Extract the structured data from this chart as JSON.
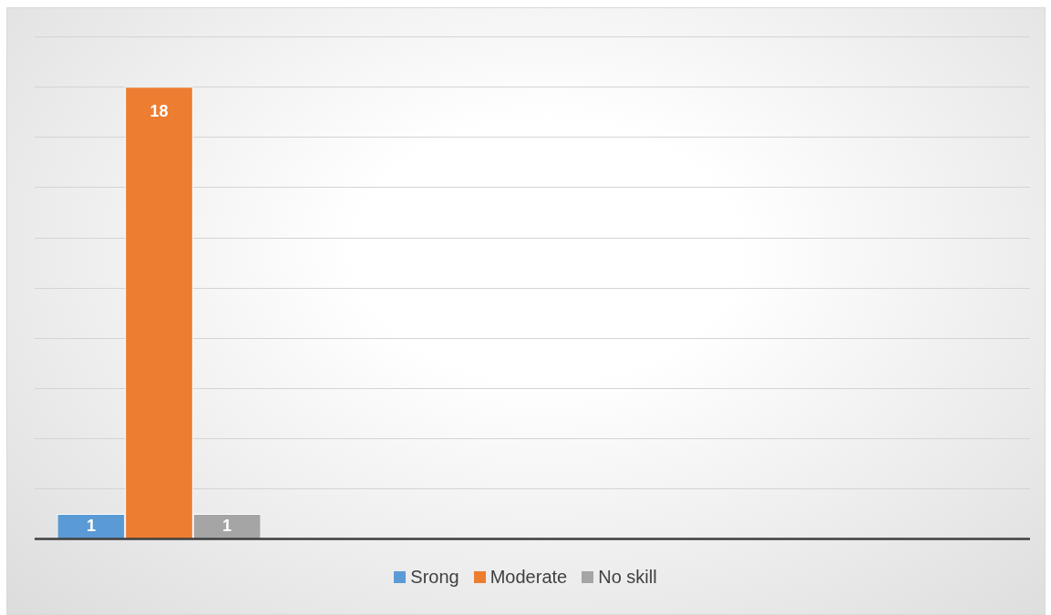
{
  "chart_data": {
    "type": "bar",
    "categories": [
      null
    ],
    "series": [
      {
        "name": "Srong",
        "color": "#5b9bd5",
        "values": [
          1
        ]
      },
      {
        "name": "Moderate",
        "color": "#ed7d31",
        "values": [
          18
        ]
      },
      {
        "name": "No skill",
        "color": "#a5a5a5",
        "values": [
          1
        ]
      }
    ],
    "ylim": [
      0,
      20
    ],
    "yticks": [
      {
        "value": 0,
        "label": null
      },
      {
        "value": 2,
        "label": null
      },
      {
        "value": 4,
        "label": null
      },
      {
        "value": 6,
        "label": null
      },
      {
        "value": 8,
        "label": null
      },
      {
        "value": 10,
        "label": null
      },
      {
        "value": 12,
        "label": null
      },
      {
        "value": 14,
        "label": null
      },
      {
        "value": 16,
        "label": null
      },
      {
        "value": 18,
        "label": null
      },
      {
        "value": 20,
        "label": null
      }
    ],
    "grid": "y",
    "legend": "bottom",
    "data_labels": true
  }
}
